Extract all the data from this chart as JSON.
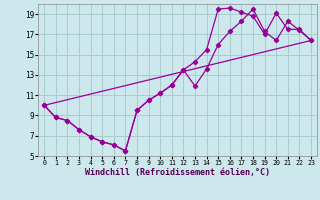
{
  "xlabel": "Windchill (Refroidissement éolien,°C)",
  "bg_color": "#cce8ec",
  "grid_color": "#aacccc",
  "line_color": "#990099",
  "xlim": [
    -0.5,
    23.5
  ],
  "ylim": [
    5,
    20
  ],
  "xticks": [
    0,
    1,
    2,
    3,
    4,
    5,
    6,
    7,
    8,
    9,
    10,
    11,
    12,
    13,
    14,
    15,
    16,
    17,
    18,
    19,
    20,
    21,
    22,
    23
  ],
  "yticks": [
    5,
    7,
    9,
    11,
    13,
    15,
    17,
    19
  ],
  "series1_x": [
    0,
    1,
    2,
    3,
    4,
    5,
    6,
    7,
    8,
    9,
    10,
    11,
    12,
    13,
    14,
    15,
    16,
    17,
    18,
    19,
    20,
    21,
    22,
    23
  ],
  "series1_y": [
    10.0,
    8.8,
    8.5,
    7.6,
    6.9,
    6.4,
    6.1,
    5.5,
    9.5,
    10.5,
    11.2,
    12.0,
    13.5,
    14.3,
    15.5,
    19.5,
    19.6,
    19.2,
    18.8,
    17.0,
    19.1,
    17.5,
    17.5,
    16.4
  ],
  "series2_x": [
    0,
    1,
    2,
    3,
    4,
    5,
    6,
    7,
    8,
    9,
    10,
    11,
    12,
    13,
    14,
    15,
    16,
    17,
    18,
    19,
    20,
    21,
    22,
    23
  ],
  "series2_y": [
    10.0,
    8.8,
    8.5,
    7.6,
    6.9,
    6.4,
    6.1,
    5.5,
    9.5,
    10.5,
    11.2,
    12.0,
    13.5,
    11.9,
    13.6,
    16.0,
    17.3,
    18.3,
    19.5,
    17.3,
    16.4,
    18.3,
    17.4,
    16.4
  ],
  "series3_x": [
    0,
    23
  ],
  "series3_y": [
    10.0,
    16.4
  ]
}
